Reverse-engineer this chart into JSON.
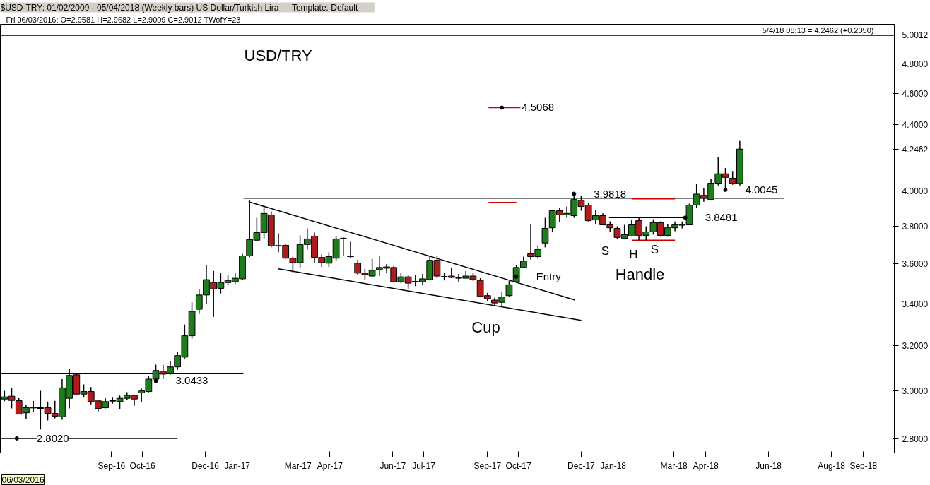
{
  "chart_data": {
    "type": "candlestick",
    "title": "USD/TRY",
    "subtitle": "$USD-TRY:  01/02/2009 - 05/04/2018  (Weekly bars)    US Dollar/Turkish Lira  —  Template: Default",
    "log": true,
    "colors": [
      "#1e7b1e",
      "#b01c1c",
      "#b01c1c",
      "#1e7b1e",
      "#1e7b1e",
      "#1e7b1e",
      "#b01c1c",
      "#b01c1c",
      "#1e7b1e",
      "#1e7b1e",
      "#b01c1c",
      "#1e7b1e",
      "#b01c1c",
      "#b01c1c",
      "#1e7b1e",
      "#1e7b1e",
      "#1e7b1e",
      "#1e7b1e",
      "#b01c1c",
      "#1e7b1e",
      "#1e7b1e",
      "#1e7b1e",
      "#b01c1c",
      "#1e7b1e",
      "#1e7b1e",
      "#1e7b1e",
      "#1e7b1e",
      "#1e7b1e",
      "#1e7b1e",
      "#b01c1c",
      "#1e7b1e",
      "#1e7b1e",
      "#1e7b1e",
      "#1e7b1e",
      "#1e7b1e",
      "#1e7b1e",
      "#1e7b1e",
      "#b01c1c",
      "#1e7b1e",
      "#b01c1c",
      "#b01c1c",
      "#1e7b1e",
      "#1e7b1e",
      "#b01c1c",
      "#b01c1c",
      "#1e7b1e",
      "#1e7b1e",
      "#1e7b1e",
      "#b01c1c",
      "#b01c1c",
      "#b01c1c",
      "#1e7b1e",
      "#1e7b1e",
      "#b01c1c",
      "#b01c1c",
      "#1e7b1e",
      "#b01c1c",
      "#b01c1c",
      "#1e7b1e",
      "#1e7b1e",
      "#b01c1c",
      "#b01c1c",
      "#b01c1c",
      "#b01c1c",
      "#1e7b1e",
      "#b01c1c",
      "#b01c1c",
      "#b01c1c",
      "#b01c1c",
      "#1e7b1e",
      "#1e7b1e",
      "#1e7b1e",
      "#1e7b1e",
      "#b01c1c",
      "#1e7b1e",
      "#1e7b1e",
      "#1e7b1e",
      "#b01c1c",
      "#1e7b1e",
      "#1e7b1e",
      "#b01c1c",
      "#b01c1c",
      "#1e7b1e",
      "#b01c1c",
      "#b01c1c",
      "#b01c1c",
      "#1e7b1e",
      "#1e7b1e",
      "#b01c1c",
      "#1e7b1e",
      "#1e7b1e",
      "#b01c1c",
      "#1e7b1e",
      "#1e7b1e",
      "#1e7b1e",
      "#1e7b1e",
      "#1e7b1e",
      "#b01c1c",
      "#1e7b1e",
      "#1e7b1e",
      "#b01c1c",
      "#b01c1c",
      "#1e7b1e"
    ],
    "x": [
      "2016-05-20",
      "2016-05-27",
      "2016-06-03",
      "2016-06-10",
      "2016-06-17",
      "2016-06-24",
      "2016-07-01",
      "2016-07-08",
      "2016-07-15",
      "2016-07-22",
      "2016-07-29",
      "2016-08-05",
      "2016-08-12",
      "2016-08-19",
      "2016-08-26",
      "2016-09-02",
      "2016-09-09",
      "2016-09-16",
      "2016-09-23",
      "2016-09-30",
      "2016-10-07",
      "2016-10-14",
      "2016-10-21",
      "2016-10-28",
      "2016-11-04",
      "2016-11-11",
      "2016-11-18",
      "2016-11-25",
      "2016-12-02",
      "2016-12-09",
      "2016-12-16",
      "2016-12-23",
      "2016-12-30",
      "2017-01-06",
      "2017-01-13",
      "2017-01-20",
      "2017-01-27",
      "2017-02-03",
      "2017-02-10",
      "2017-02-17",
      "2017-02-24",
      "2017-03-03",
      "2017-03-10",
      "2017-03-17",
      "2017-03-24",
      "2017-03-31",
      "2017-04-07",
      "2017-04-14",
      "2017-04-21",
      "2017-04-28",
      "2017-05-05",
      "2017-05-12",
      "2017-05-19",
      "2017-05-26",
      "2017-06-02",
      "2017-06-09",
      "2017-06-16",
      "2017-06-23",
      "2017-06-30",
      "2017-07-07",
      "2017-07-14",
      "2017-07-21",
      "2017-07-28",
      "2017-08-04",
      "2017-08-11",
      "2017-08-18",
      "2017-08-25",
      "2017-09-01",
      "2017-09-08",
      "2017-09-15",
      "2017-09-22",
      "2017-09-29",
      "2017-10-06",
      "2017-10-13",
      "2017-10-20",
      "2017-10-27",
      "2017-11-03",
      "2017-11-10",
      "2017-11-17",
      "2017-11-24",
      "2017-12-01",
      "2017-12-08",
      "2017-12-15",
      "2017-12-22",
      "2017-12-29",
      "2018-01-05",
      "2018-01-12",
      "2018-01-19",
      "2018-01-26",
      "2018-02-02",
      "2018-02-09",
      "2018-02-16",
      "2018-02-23",
      "2018-03-02",
      "2018-03-09",
      "2018-03-16",
      "2018-03-23",
      "2018-03-30",
      "2018-04-06",
      "2018-04-13",
      "2018-04-20",
      "2018-04-27",
      "2018-05-04"
    ],
    "ohlc": [
      [
        2.965,
        3.0,
        2.956,
        2.974
      ],
      [
        2.977,
        3.013,
        2.925,
        2.959
      ],
      [
        2.9581,
        2.9682,
        2.9009,
        2.9012
      ],
      [
        2.907,
        2.939,
        2.881,
        2.928
      ],
      [
        2.927,
        2.957,
        2.91,
        2.929
      ],
      [
        2.925,
        3.0,
        2.838,
        2.928
      ],
      [
        2.928,
        2.954,
        2.875,
        2.904
      ],
      [
        2.904,
        2.957,
        2.884,
        2.893
      ],
      [
        2.89,
        3.051,
        2.878,
        3.013
      ],
      [
        2.968,
        3.098,
        2.925,
        3.067
      ],
      [
        3.07,
        3.073,
        2.986,
        2.986
      ],
      [
        2.986,
        3.028,
        2.971,
        2.997
      ],
      [
        2.997,
        3.016,
        2.942,
        2.954
      ],
      [
        2.957,
        2.962,
        2.913,
        2.925
      ],
      [
        2.928,
        2.968,
        2.925,
        2.954
      ],
      [
        2.956,
        2.971,
        2.945,
        2.958
      ],
      [
        2.954,
        2.98,
        2.922,
        2.968
      ],
      [
        2.968,
        2.994,
        2.962,
        2.98
      ],
      [
        2.98,
        2.981,
        2.936,
        2.965
      ],
      [
        2.991,
        3.01,
        2.951,
        3.0
      ],
      [
        2.997,
        3.064,
        2.994,
        3.051
      ],
      [
        3.051,
        3.115,
        3.0433,
        3.089
      ],
      [
        3.086,
        3.115,
        3.051,
        3.073
      ],
      [
        3.076,
        3.13,
        3.07,
        3.105
      ],
      [
        3.105,
        3.172,
        3.092,
        3.156
      ],
      [
        3.149,
        3.3,
        3.143,
        3.247
      ],
      [
        3.247,
        3.407,
        3.233,
        3.363
      ],
      [
        3.373,
        3.473,
        3.35,
        3.443
      ],
      [
        3.443,
        3.596,
        3.4,
        3.52
      ],
      [
        3.505,
        3.564,
        3.337,
        3.473
      ],
      [
        3.476,
        3.553,
        3.451,
        3.505
      ],
      [
        3.505,
        3.545,
        3.491,
        3.516
      ],
      [
        3.509,
        3.553,
        3.498,
        3.527
      ],
      [
        3.524,
        3.653,
        3.52,
        3.642
      ],
      [
        3.642,
        3.945,
        3.635,
        3.728
      ],
      [
        3.725,
        3.847,
        3.721,
        3.766
      ],
      [
        3.766,
        3.914,
        3.736,
        3.871
      ],
      [
        3.863,
        3.882,
        3.687,
        3.694
      ],
      [
        3.694,
        3.762,
        3.661,
        3.697
      ],
      [
        3.698,
        3.706,
        3.627,
        3.63
      ],
      [
        3.63,
        3.638,
        3.556,
        3.607
      ],
      [
        3.607,
        3.751,
        3.582,
        3.702
      ],
      [
        3.702,
        3.789,
        3.676,
        3.732
      ],
      [
        3.747,
        3.766,
        3.604,
        3.634
      ],
      [
        3.634,
        3.649,
        3.585,
        3.607
      ],
      [
        3.604,
        3.661,
        3.585,
        3.638
      ],
      [
        3.63,
        3.747,
        3.619,
        3.732
      ],
      [
        3.732,
        3.74,
        3.642,
        3.736
      ],
      [
        3.64,
        3.717,
        3.63,
        3.638
      ],
      [
        3.604,
        3.622,
        3.542,
        3.553
      ],
      [
        3.553,
        3.575,
        3.516,
        3.545
      ],
      [
        3.538,
        3.626,
        3.531,
        3.567
      ],
      [
        3.571,
        3.642,
        3.538,
        3.582
      ],
      [
        3.585,
        3.6,
        3.553,
        3.578
      ],
      [
        3.582,
        3.589,
        3.509,
        3.509
      ],
      [
        3.509,
        3.556,
        3.502,
        3.534
      ],
      [
        3.534,
        3.542,
        3.473,
        3.502
      ],
      [
        3.511,
        3.545,
        3.487,
        3.509
      ],
      [
        3.509,
        3.549,
        3.491,
        3.524
      ],
      [
        3.52,
        3.642,
        3.516,
        3.619
      ],
      [
        3.619,
        3.642,
        3.527,
        3.538
      ],
      [
        3.536,
        3.556,
        3.516,
        3.534
      ],
      [
        3.538,
        3.582,
        3.527,
        3.531
      ],
      [
        3.529,
        3.549,
        3.509,
        3.527
      ],
      [
        3.527,
        3.564,
        3.527,
        3.538
      ],
      [
        3.538,
        3.553,
        3.513,
        3.52
      ],
      [
        3.516,
        3.527,
        3.436,
        3.436
      ],
      [
        3.44,
        3.454,
        3.411,
        3.425
      ],
      [
        3.418,
        3.429,
        3.393,
        3.404
      ],
      [
        3.407,
        3.458,
        3.387,
        3.433
      ],
      [
        3.44,
        3.513,
        3.436,
        3.494
      ],
      [
        3.509,
        3.596,
        3.509,
        3.582
      ],
      [
        3.582,
        3.638,
        3.582,
        3.615
      ],
      [
        3.653,
        3.812,
        3.623,
        3.638
      ],
      [
        3.638,
        3.698,
        3.627,
        3.676
      ],
      [
        3.71,
        3.847,
        3.687,
        3.789
      ],
      [
        3.792,
        3.89,
        3.77,
        3.886
      ],
      [
        3.886,
        3.902,
        3.823,
        3.863
      ],
      [
        3.863,
        3.91,
        3.847,
        3.871
      ],
      [
        3.859,
        3.9818,
        3.847,
        3.949
      ],
      [
        3.945,
        3.969,
        3.886,
        3.91
      ],
      [
        3.918,
        3.929,
        3.827,
        3.831
      ],
      [
        3.835,
        3.89,
        3.812,
        3.859
      ],
      [
        3.859,
        3.871,
        3.808,
        3.808
      ],
      [
        3.808,
        3.827,
        3.77,
        3.792
      ],
      [
        3.789,
        3.8,
        3.732,
        3.74
      ],
      [
        3.736,
        3.808,
        3.736,
        3.755
      ],
      [
        3.747,
        3.835,
        3.744,
        3.808
      ],
      [
        3.831,
        3.8481,
        3.725,
        3.751
      ],
      [
        3.751,
        3.8,
        3.725,
        3.77
      ],
      [
        3.77,
        3.839,
        3.755,
        3.82
      ],
      [
        3.82,
        3.827,
        3.744,
        3.751
      ],
      [
        3.751,
        3.812,
        3.744,
        3.792
      ],
      [
        3.792,
        3.827,
        3.774,
        3.808
      ],
      [
        3.806,
        3.827,
        3.789,
        3.81
      ],
      [
        3.808,
        3.926,
        3.808,
        3.918
      ],
      [
        3.918,
        4.038,
        3.902,
        3.98
      ],
      [
        3.973,
        4.017,
        3.937,
        3.957
      ],
      [
        3.949,
        4.068,
        3.945,
        4.043
      ],
      [
        4.043,
        4.196,
        4.03,
        4.098
      ],
      [
        4.098,
        4.132,
        4.0045,
        4.077
      ],
      [
        4.072,
        4.115,
        4.034,
        4.0412
      ],
      [
        4.0412,
        4.296,
        4.03,
        4.2462
      ]
    ],
    "series": [
      {
        "type": "line",
        "color": "#000000",
        "x": [
          "2017-01-12",
          "2017-11-25"
        ],
        "values": [
          3.937,
          3.418
        ]
      },
      {
        "type": "line",
        "color": "#000000",
        "x": [
          "2017-02-10",
          "2017-12-01"
        ],
        "values": [
          3.575,
          3.32
        ]
      },
      {
        "type": "line",
        "color": "#000000",
        "x": [
          "2017-01-07",
          "2018-06-16"
        ],
        "values": [
          3.957,
          3.957
        ]
      },
      {
        "type": "line",
        "color": "#000000",
        "x": [
          "2016-05-16",
          "2017-01-07"
        ],
        "values": [
          3.075,
          3.075
        ]
      },
      {
        "type": "line",
        "color": "#000000",
        "x": [
          "2016-05-16",
          "2016-11-04"
        ],
        "values": [
          2.802,
          2.802
        ]
      },
      {
        "type": "line",
        "color": "#000000",
        "x": [
          "2017-12-28",
          "2018-03-12"
        ],
        "values": [
          3.8481,
          3.8481
        ]
      },
      {
        "type": "line",
        "color": "#cc0000",
        "x": [
          "2017-09-02",
          "2017-10-03"
        ],
        "values": [
          4.5068,
          4.5068
        ]
      },
      {
        "type": "line",
        "color": "#cc0000",
        "x": [
          "2017-09-02",
          "2017-09-29"
        ],
        "values": [
          3.933,
          3.933
        ]
      },
      {
        "type": "line",
        "color": "#cc0000",
        "x": [
          "2018-01-19",
          "2018-03-02"
        ],
        "values": [
          3.953,
          3.953
        ]
      },
      {
        "type": "line",
        "color": "#cc0000",
        "x": [
          "2018-01-19",
          "2018-03-02"
        ],
        "values": [
          3.725,
          3.725
        ]
      }
    ],
    "ref_lines": [
      {
        "axis": "y",
        "value": 5.0012,
        "color": "#000000"
      }
    ],
    "annotations": [
      "Fri    06/03/2016:  O=2.9581  H=2.9682  L=2.9009  C=2.9012  TWofY=23",
      "5/4/18 08:13 = 4.2462 (+0.2050)",
      "06/03/2016",
      "Cup",
      "Handle",
      "S",
      "H",
      "S",
      {
        "text": "4.5068",
        "x": "2017-09-15",
        "y": 4.5068
      },
      {
        "text": "3.9818",
        "x": "2017-11-24",
        "y": 3.9818
      },
      {
        "text": "3.8481",
        "x": "2018-03-12",
        "y": 3.8481
      },
      {
        "text": "4.0045",
        "x": "2018-04-20",
        "y": 4.0045
      },
      {
        "text": "3.0433",
        "x": "2016-10-14",
        "y": 3.0433
      },
      {
        "text": "2.8020",
        "x": "2016-06-01",
        "y": 2.802
      },
      {
        "text": "Entry",
        "x": "2017-09-29",
        "y": 3.535
      }
    ],
    "xlim": [
      "2016-05-16",
      "2018-10-01"
    ],
    "xticks": [
      {
        "value": "2016-09-01",
        "label": "Sep-16"
      },
      {
        "value": "2016-10-01",
        "label": "Oct-16"
      },
      {
        "value": "2016-12-01",
        "label": "Dec-16"
      },
      {
        "value": "2017-01-01",
        "label": "Jan-17"
      },
      {
        "value": "2017-03-01",
        "label": "Mar-17"
      },
      {
        "value": "2017-04-01",
        "label": "Apr-17"
      },
      {
        "value": "2017-06-01",
        "label": "Jun-17"
      },
      {
        "value": "2017-07-01",
        "label": "Jul-17"
      },
      {
        "value": "2017-09-01",
        "label": "Sep-17"
      },
      {
        "value": "2017-10-01",
        "label": "Oct-17"
      },
      {
        "value": "2017-12-01",
        "label": "Dec-17"
      },
      {
        "value": "2018-01-01",
        "label": "Jan-18"
      },
      {
        "value": "2018-03-01",
        "label": "Mar-18"
      },
      {
        "value": "2018-04-01",
        "label": "Apr-18"
      },
      {
        "value": "2018-06-01",
        "label": "Jun-18"
      },
      {
        "value": "2018-08-01",
        "label": "Aug-18"
      },
      {
        "value": "2018-09-01",
        "label": "Sep-18"
      }
    ],
    "ylim": [
      2.744,
      5.08
    ],
    "yticks": [
      {
        "value": 2.8,
        "label": "2.8000"
      },
      {
        "value": 3.0,
        "label": "3.0000"
      },
      {
        "value": 3.2,
        "label": "3.2000"
      },
      {
        "value": 3.4,
        "label": "3.4000"
      },
      {
        "value": 3.6,
        "label": "3.6000"
      },
      {
        "value": 3.8,
        "label": "3.8000"
      },
      {
        "value": 4.0,
        "label": "4.0000"
      },
      {
        "value": 4.2462,
        "label": "4.2462"
      },
      {
        "value": 4.4,
        "label": "4.4000"
      },
      {
        "value": 4.6,
        "label": "4.6000"
      },
      {
        "value": 4.8,
        "label": "4.8000"
      },
      {
        "value": 5.0012,
        "label": "5.0012"
      }
    ]
  }
}
